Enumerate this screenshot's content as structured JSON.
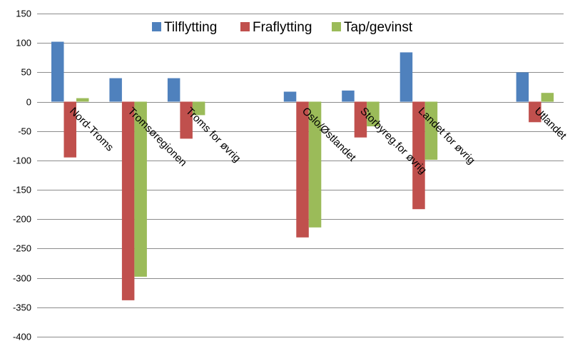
{
  "chart_data": {
    "type": "bar",
    "title": "",
    "xlabel": "",
    "ylabel": "",
    "ylim": [
      -400,
      150
    ],
    "ytick_step": 50,
    "grid": true,
    "legend_position": "top-center",
    "categories": [
      "Nord-Troms",
      "Tromsøregionen",
      "Troms for øvrig",
      "",
      "Oslo/Østlandet",
      "Storbyreg.for øvrig",
      "Landet for øvrig",
      "",
      "Utlandet"
    ],
    "series": [
      {
        "name": "Tilflytting",
        "color": "#4f81bd",
        "values": [
          102,
          40,
          40,
          null,
          17,
          19,
          84,
          null,
          50
        ]
      },
      {
        "name": "Fraflytting",
        "color": "#c0504d",
        "values": [
          -95,
          -338,
          -63,
          null,
          -231,
          -61,
          -183,
          null,
          -35
        ]
      },
      {
        "name": "Tap/gevinst",
        "color": "#9bbb59",
        "values": [
          6,
          -298,
          -23,
          null,
          -214,
          -42,
          -99,
          null,
          15
        ]
      }
    ]
  }
}
